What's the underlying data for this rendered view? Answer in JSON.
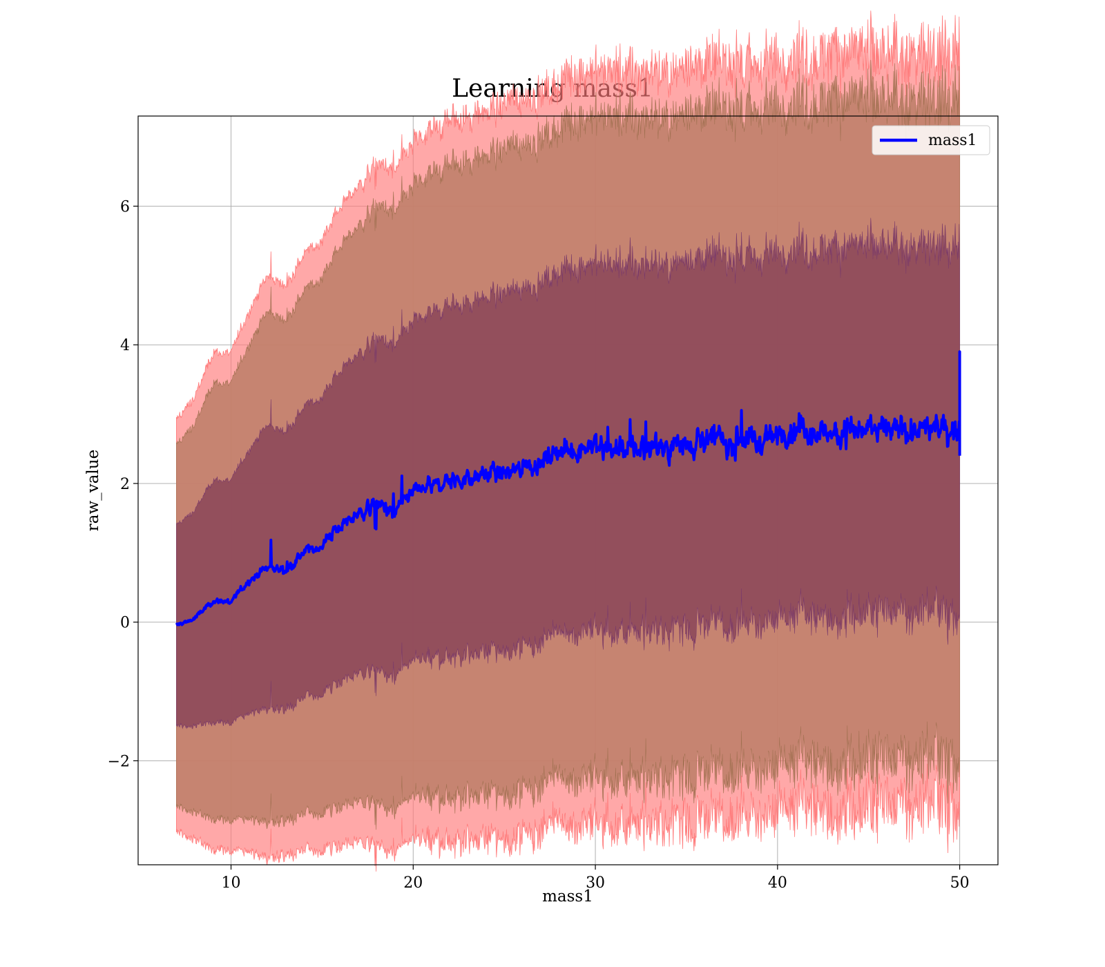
{
  "chart_data": {
    "type": "line",
    "title": "Learning mass1",
    "xlabel": "mass1",
    "ylabel": "raw_value",
    "xlim": [
      4.9,
      52.1
    ],
    "ylim": [
      -3.5,
      7.3
    ],
    "xticks": [
      10,
      20,
      30,
      40,
      50
    ],
    "yticks": [
      -2,
      0,
      2,
      4,
      6
    ],
    "xtick_labels": [
      "10",
      "20",
      "30",
      "40",
      "50"
    ],
    "ytick_labels": [
      "−2",
      "0",
      "2",
      "4",
      "6"
    ],
    "grid": true,
    "legend": {
      "position": "top-right",
      "entries": [
        {
          "label": "mass1",
          "color": "#0000ff"
        }
      ]
    },
    "colors": {
      "mean_line": "#0000ff",
      "band_1sigma": "#803a55",
      "band_2sigma": "#c0806a",
      "band_3sigma": "#ff7a7a"
    },
    "series": [
      {
        "name": "mass1",
        "x": [
          7,
          8,
          9,
          10,
          11,
          12,
          13,
          14,
          15,
          16,
          17,
          18,
          19,
          20,
          21,
          22,
          23,
          24,
          25,
          26,
          27,
          28,
          29,
          30,
          31,
          32,
          33,
          34,
          35,
          36,
          37,
          38,
          39,
          40,
          41,
          42,
          43,
          44,
          45,
          46,
          47,
          48,
          49,
          50
        ],
        "y": [
          -0.05,
          0.05,
          0.3,
          0.3,
          0.6,
          0.8,
          0.75,
          1.0,
          1.1,
          1.4,
          1.55,
          1.7,
          1.6,
          1.85,
          1.95,
          2.05,
          2.05,
          2.15,
          2.15,
          2.25,
          2.3,
          2.45,
          2.5,
          2.55,
          2.5,
          2.5,
          2.55,
          2.5,
          2.6,
          2.65,
          2.6,
          2.65,
          2.6,
          2.7,
          2.75,
          2.7,
          2.75,
          2.8,
          2.75,
          2.75,
          2.75,
          2.75,
          2.8,
          2.8
        ],
        "std": [
          1.45,
          1.55,
          1.75,
          1.75,
          1.9,
          2.05,
          2.0,
          2.1,
          2.15,
          2.25,
          2.3,
          2.4,
          2.4,
          2.45,
          2.5,
          2.55,
          2.55,
          2.55,
          2.6,
          2.6,
          2.6,
          2.6,
          2.65,
          2.65,
          2.65,
          2.65,
          2.65,
          2.65,
          2.65,
          2.65,
          2.65,
          2.65,
          2.65,
          2.65,
          2.65,
          2.65,
          2.65,
          2.65,
          2.65,
          2.65,
          2.65,
          2.65,
          2.65,
          2.65
        ]
      }
    ]
  }
}
